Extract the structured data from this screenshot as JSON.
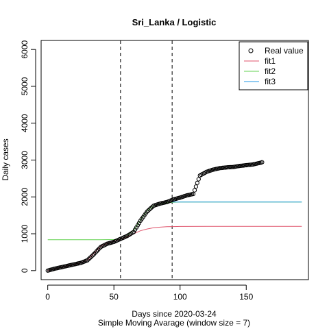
{
  "chart_data": {
    "type": "line",
    "title": "Sri_Lanka / Logistic",
    "xlabel": "Days since 2020-03-24",
    "xlabel_sub": "Simple Moving Avarage (window size = 7)",
    "ylabel": "Daily cases",
    "xlim": [
      -5,
      197
    ],
    "ylim": [
      -245,
      6245
    ],
    "x_ticks": [
      0,
      50,
      100,
      150
    ],
    "y_ticks": [
      0,
      1000,
      2000,
      3000,
      4000,
      5000,
      6000
    ],
    "vlines": [
      55,
      94
    ],
    "legend": {
      "position": "top-right",
      "entries": [
        {
          "label": "Real value",
          "kind": "point",
          "color": "#000000"
        },
        {
          "label": "fit1",
          "kind": "line",
          "color": "#DF536B"
        },
        {
          "label": "fit2",
          "kind": "line",
          "color": "#61D04F"
        },
        {
          "label": "fit3",
          "kind": "line",
          "color": "#2297E6"
        }
      ]
    },
    "real_value": {
      "name": "Real value",
      "x": [
        0,
        5,
        10,
        15,
        20,
        25,
        30,
        35,
        40,
        45,
        50,
        55,
        60,
        65,
        70,
        75,
        80,
        85,
        90,
        95,
        100,
        105,
        110,
        115,
        120,
        125,
        130,
        135,
        140,
        145,
        150,
        155,
        160,
        162
      ],
      "y": [
        0,
        50,
        90,
        130,
        170,
        210,
        280,
        450,
        640,
        730,
        780,
        860,
        940,
        1050,
        1350,
        1600,
        1760,
        1820,
        1860,
        1930,
        1980,
        2040,
        2080,
        2580,
        2680,
        2740,
        2780,
        2800,
        2810,
        2840,
        2860,
        2880,
        2920,
        2940
      ]
    },
    "fit1": {
      "name": "fit1",
      "color": "#DF536B",
      "x": [
        0,
        5,
        10,
        15,
        20,
        25,
        30,
        35,
        40,
        45,
        50,
        55,
        60,
        65,
        70,
        75,
        80,
        85,
        90,
        95,
        100,
        120,
        140,
        160,
        180,
        192
      ],
      "y": [
        0,
        45,
        88,
        128,
        168,
        210,
        285,
        470,
        660,
        745,
        795,
        855,
        920,
        1000,
        1080,
        1130,
        1165,
        1180,
        1190,
        1195,
        1198,
        1200,
        1200,
        1200,
        1200,
        1200
      ]
    },
    "fit2": {
      "name": "fit2",
      "color": "#61D04F",
      "x": [
        0,
        10,
        20,
        30,
        40,
        50,
        55,
        60,
        65,
        70,
        75,
        80,
        85,
        90,
        95,
        100,
        110,
        120,
        140,
        160,
        180,
        192
      ],
      "y": [
        840,
        840,
        840,
        840,
        840,
        842,
        850,
        950,
        1100,
        1370,
        1620,
        1760,
        1810,
        1840,
        1855,
        1860,
        1862,
        1862,
        1862,
        1862,
        1862,
        1862
      ]
    },
    "fit3": {
      "name": "fit3",
      "color": "#2297E6",
      "x": [
        94,
        120,
        140,
        160,
        180,
        192
      ],
      "y": [
        1862,
        1862,
        1862,
        1862,
        1862,
        1862
      ]
    }
  }
}
